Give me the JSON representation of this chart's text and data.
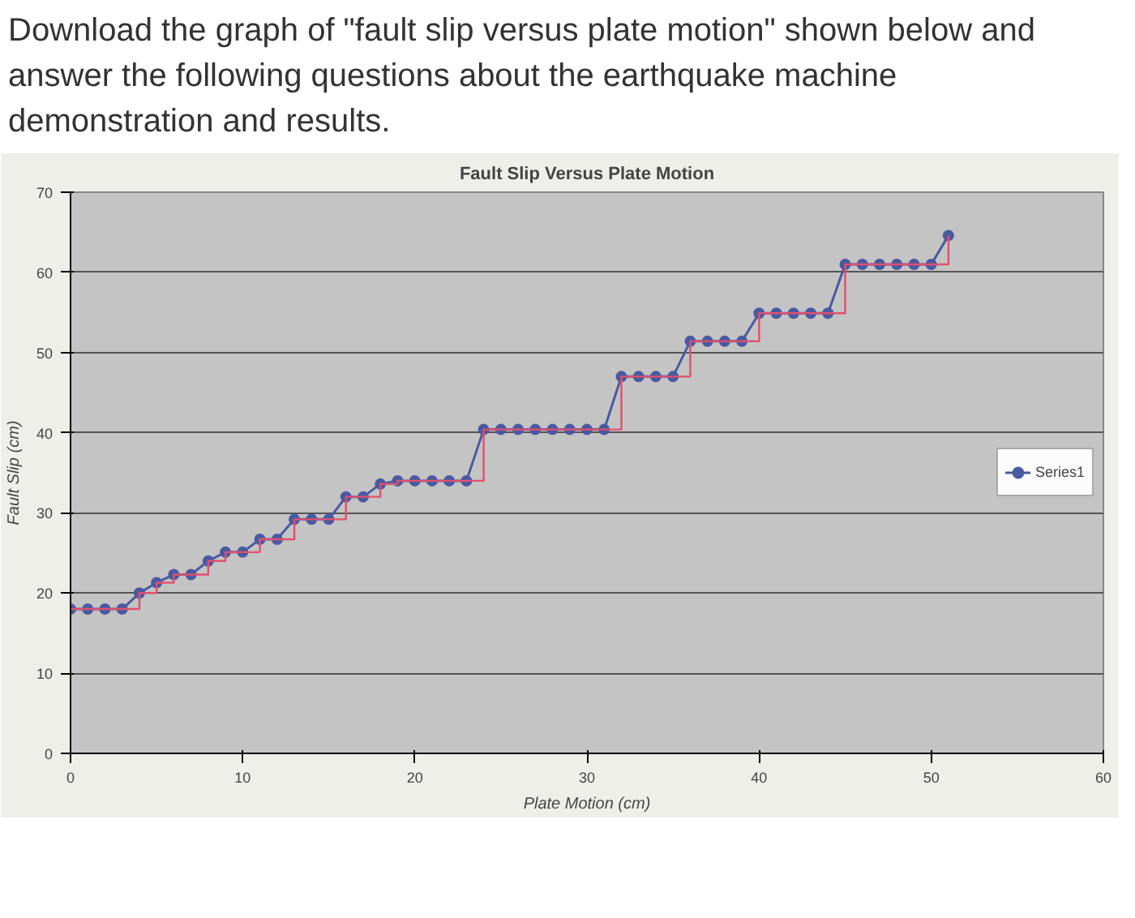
{
  "chart_data": {
    "type": "line",
    "title": "Fault Slip Versus Plate Motion",
    "xlabel": "Plate Motion (cm)",
    "ylabel": "Fault Slip (cm)",
    "annotations": [
      "Download the graph of \"fault slip versus plate motion\" shown below and answer the following questions about the earthquake machine demonstration and results."
    ],
    "x": [
      0,
      1,
      2,
      3,
      4,
      5,
      6,
      7,
      8,
      9,
      10,
      11,
      12,
      13,
      14,
      15,
      16,
      17,
      18,
      19,
      20,
      21,
      22,
      23,
      24,
      25,
      26,
      27,
      28,
      29,
      30,
      31,
      32,
      33,
      34,
      35,
      36,
      37,
      38,
      39,
      40,
      41,
      42,
      43,
      44,
      45,
      46,
      47,
      48,
      49,
      50,
      51
    ],
    "series": [
      {
        "name": "Series1",
        "color": "#4a5aa0",
        "marker": "circle",
        "values": [
          18,
          18,
          18,
          18,
          20,
          21.3,
          22.3,
          22.3,
          24,
          25.1,
          25.1,
          26.7,
          26.7,
          29.2,
          29.2,
          29.2,
          32,
          32,
          33.6,
          34,
          34,
          34,
          34,
          34,
          40.4,
          40.4,
          40.4,
          40.4,
          40.4,
          40.4,
          40.4,
          40.4,
          47,
          47,
          47,
          47,
          51.4,
          51.4,
          51.4,
          51.4,
          54.9,
          54.9,
          54.9,
          54.9,
          54.9,
          61,
          61,
          61,
          61,
          61,
          61,
          64.6
        ]
      },
      {
        "type": "step",
        "color": "#e0506e",
        "marker": "none",
        "values": [
          18,
          18,
          18,
          18,
          20,
          21.3,
          22.3,
          22.3,
          24,
          25.1,
          25.1,
          26.7,
          26.7,
          29.2,
          29.2,
          29.2,
          32,
          32,
          33.6,
          34,
          34,
          34,
          34,
          34,
          40.4,
          40.4,
          40.4,
          40.4,
          40.4,
          40.4,
          40.4,
          40.4,
          47,
          47,
          47,
          47,
          51.4,
          51.4,
          51.4,
          51.4,
          54.9,
          54.9,
          54.9,
          54.9,
          54.9,
          61,
          61,
          61,
          61,
          61,
          61,
          64.6
        ]
      }
    ],
    "xlim": [
      0,
      60
    ],
    "ylim": [
      0,
      70
    ],
    "xticks": [
      0,
      10,
      20,
      30,
      40,
      50,
      60
    ],
    "yticks": [
      0,
      10,
      20,
      30,
      40,
      50,
      60,
      70
    ],
    "grid": "y",
    "legend": "right",
    "line_style": "solid"
  }
}
